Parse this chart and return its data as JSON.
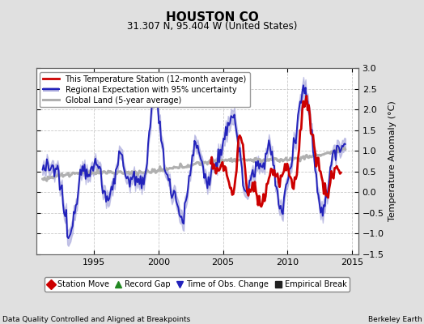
{
  "title": "HOUSTON CO",
  "subtitle": "31.307 N, 95.404 W (United States)",
  "xlabel_left": "Data Quality Controlled and Aligned at Breakpoints",
  "xlabel_right": "Berkeley Earth",
  "ylabel": "Temperature Anomaly (°C)",
  "ylim": [
    -1.5,
    3.0
  ],
  "xlim": [
    1990.5,
    2015.5
  ],
  "yticks": [
    -1.5,
    -1.0,
    -0.5,
    0.0,
    0.5,
    1.0,
    1.5,
    2.0,
    2.5,
    3.0
  ],
  "xticks": [
    1995,
    2000,
    2005,
    2010,
    2015
  ],
  "bg_color": "#e0e0e0",
  "plot_bg_color": "#ffffff",
  "grid_color": "#c8c8c8",
  "regional_color": "#2222bb",
  "regional_fill_color": "#aaaadd",
  "station_color": "#cc0000",
  "global_color": "#b0b0b0",
  "legend1_items": [
    {
      "label": "This Temperature Station (12-month average)",
      "color": "#cc0000",
      "lw": 2.0
    },
    {
      "label": "Regional Expectation with 95% uncertainty",
      "color": "#2222bb",
      "lw": 1.5
    },
    {
      "label": "Global Land (5-year average)",
      "color": "#b0b0b0",
      "lw": 2.0
    }
  ],
  "legend2_items": [
    {
      "label": "Station Move",
      "color": "#cc0000",
      "marker": "D"
    },
    {
      "label": "Record Gap",
      "color": "#228822",
      "marker": "^"
    },
    {
      "label": "Time of Obs. Change",
      "color": "#2222bb",
      "marker": "v"
    },
    {
      "label": "Empirical Break",
      "color": "#222222",
      "marker": "s"
    }
  ]
}
